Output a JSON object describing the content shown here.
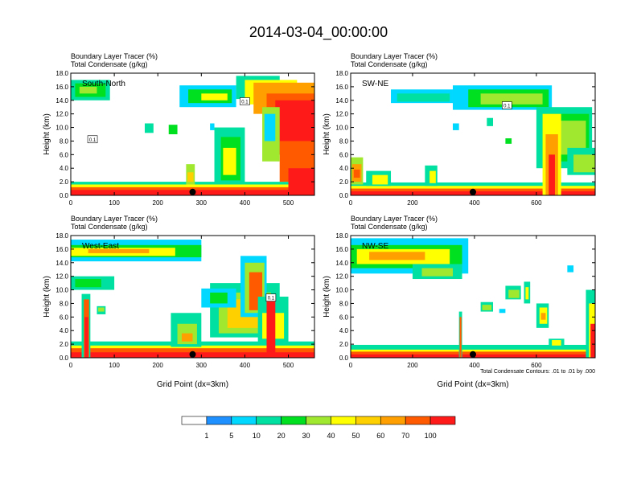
{
  "title": "2014-03-04_00:00:00",
  "panel_titles": {
    "tracer": "Boundary Layer Tracer   (%)",
    "condensate": "Total Condensate   (g/kg)"
  },
  "axes": {
    "ylabel": "Height (km)",
    "xlabel": "Grid Point (dx=3km)"
  },
  "contour_note": "Total Condensate Contours: .01 to .01 by .000",
  "colorbar": {
    "colors": [
      "#ffffff",
      "#1e90ff",
      "#00d8ff",
      "#00e0a0",
      "#00e020",
      "#a0e830",
      "#ffff00",
      "#ffd000",
      "#ffa000",
      "#ff5a00",
      "#ff1a1a"
    ],
    "labels": [
      "1",
      "5",
      "10",
      "20",
      "30",
      "40",
      "50",
      "60",
      "70",
      "100"
    ]
  },
  "chart_data": [
    {
      "type": "heatmap",
      "name": "South-North",
      "title": "Boundary Layer Tracer   (%)",
      "subtitle": "Total Condensate   (g/kg)",
      "xlim": [
        0,
        560
      ],
      "ylim": [
        0,
        18
      ],
      "xticks": [
        0,
        100,
        200,
        300,
        400,
        500
      ],
      "yticks": [
        "0.0",
        "2.0",
        "4.0",
        "6.0",
        "8.0",
        "10.0",
        "12.0",
        "14.0",
        "16.0",
        "18.0"
      ],
      "ylabel": "Height (km)",
      "xlabel": "",
      "marker_x": 280,
      "contour_labels": [
        {
          "x": 50,
          "y": 8.2,
          "text": "0.1"
        },
        {
          "x": 400,
          "y": 13.8,
          "text": "0.1"
        }
      ]
    },
    {
      "type": "heatmap",
      "name": "SW-NE",
      "title": "Boundary Layer Tracer   (%)",
      "subtitle": "Total Condensate   (g/kg)",
      "xlim": [
        0,
        790
      ],
      "ylim": [
        0,
        18
      ],
      "xticks": [
        0,
        200,
        400,
        600
      ],
      "yticks": [
        "0.0",
        "2.0",
        "4.0",
        "6.0",
        "8.0",
        "10.0",
        "12.0",
        "14.0",
        "16.0",
        "18.0"
      ],
      "ylabel": "Height (km)",
      "xlabel": "",
      "marker_x": 395,
      "contour_labels": [
        {
          "x": 505,
          "y": 13.2,
          "text": "0.1"
        }
      ]
    },
    {
      "type": "heatmap",
      "name": "West-East",
      "title": "Boundary Layer Tracer   (%)",
      "subtitle": "Total Condensate   (g/kg)",
      "xlim": [
        0,
        560
      ],
      "ylim": [
        0,
        18
      ],
      "xticks": [
        0,
        100,
        200,
        300,
        400,
        500
      ],
      "yticks": [
        "0.0",
        "2.0",
        "4.0",
        "6.0",
        "8.0",
        "10.0",
        "12.0",
        "14.0",
        "16.0",
        "18.0"
      ],
      "ylabel": "Height (km)",
      "xlabel": "Grid Point (dx=3km)",
      "marker_x": 280,
      "contour_labels": [
        {
          "x": 460,
          "y": 8.8,
          "text": "0.1"
        }
      ]
    },
    {
      "type": "heatmap",
      "name": "NW-SE",
      "title": "Boundary Layer Tracer   (%)",
      "subtitle": "Total Condensate   (g/kg)",
      "xlim": [
        0,
        790
      ],
      "ylim": [
        0,
        18
      ],
      "xticks": [
        0,
        200,
        400,
        600
      ],
      "yticks": [
        "0.0",
        "2.0",
        "4.0",
        "6.0",
        "8.0",
        "10.0",
        "12.0",
        "14.0",
        "16.0",
        "18.0"
      ],
      "ylabel": "Height (km)",
      "xlabel": "Grid Point (dx=3km)",
      "marker_x": 395,
      "contour_labels": []
    }
  ]
}
